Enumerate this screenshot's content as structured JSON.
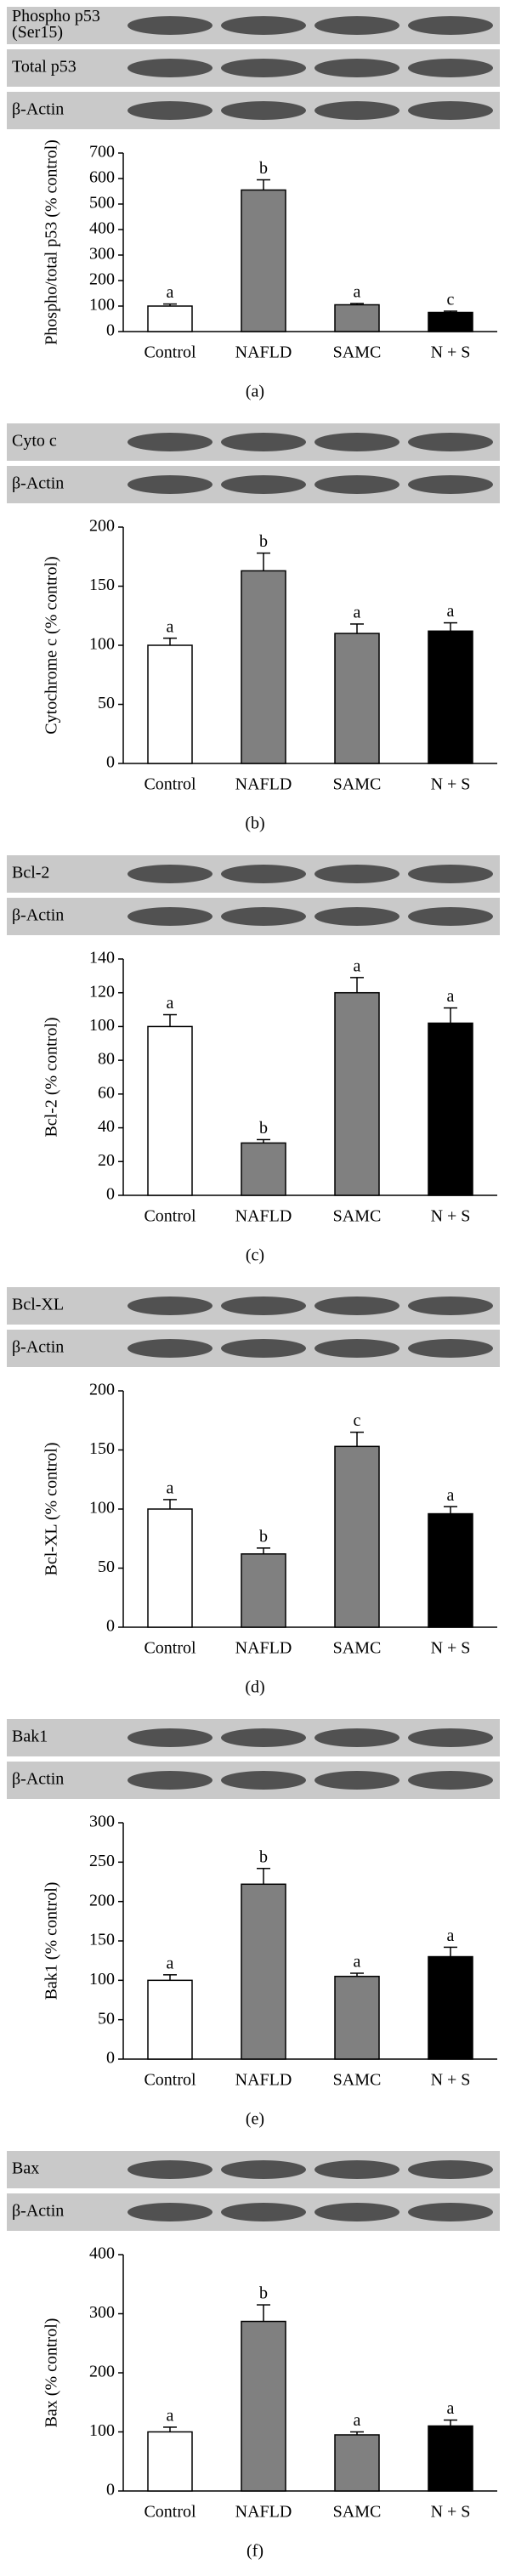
{
  "chart_data": [
    {
      "type": "bar",
      "panel_label": "(a)",
      "blots": [
        [
          "Phospho p53",
          "(Ser15)"
        ],
        [
          "Total p53"
        ],
        [
          "β-Actin"
        ]
      ],
      "ylabel": "Phospho/total p53 (% control)",
      "categories": [
        "Control",
        "NAFLD",
        "SAMC",
        "N + S"
      ],
      "values": [
        100,
        555,
        105,
        75
      ],
      "errors": [
        8,
        40,
        5,
        5
      ],
      "annotations": [
        "a",
        "b",
        "a",
        "c"
      ],
      "colors": [
        "#ffffff",
        "#808080",
        "#808080",
        "#000000"
      ],
      "ylim": [
        0,
        700
      ],
      "yticks": [
        0,
        100,
        200,
        300,
        400,
        500,
        600,
        700
      ]
    },
    {
      "type": "bar",
      "panel_label": "(b)",
      "blots": [
        [
          "Cyto c"
        ],
        [
          "β-Actin"
        ]
      ],
      "ylabel": "Cytochrome c (% control)",
      "categories": [
        "Control",
        "NAFLD",
        "SAMC",
        "N + S"
      ],
      "values": [
        100,
        163,
        110,
        112
      ],
      "errors": [
        6,
        15,
        8,
        7
      ],
      "annotations": [
        "a",
        "b",
        "a",
        "a"
      ],
      "colors": [
        "#ffffff",
        "#808080",
        "#808080",
        "#000000"
      ],
      "ylim": [
        0,
        200
      ],
      "yticks": [
        0,
        50,
        100,
        150,
        200
      ]
    },
    {
      "type": "bar",
      "panel_label": "(c)",
      "blots": [
        [
          "Bcl-2"
        ],
        [
          "β-Actin"
        ]
      ],
      "ylabel": "Bcl-2 (% control)",
      "categories": [
        "Control",
        "NAFLD",
        "SAMC",
        "N + S"
      ],
      "values": [
        100,
        31,
        120,
        102
      ],
      "errors": [
        7,
        2,
        9,
        9
      ],
      "annotations": [
        "a",
        "b",
        "a",
        "a"
      ],
      "colors": [
        "#ffffff",
        "#808080",
        "#808080",
        "#000000"
      ],
      "ylim": [
        0,
        140
      ],
      "yticks": [
        0,
        20,
        40,
        60,
        80,
        100,
        120,
        140
      ]
    },
    {
      "type": "bar",
      "panel_label": "(d)",
      "blots": [
        [
          "Bcl-XL"
        ],
        [
          "β-Actin"
        ]
      ],
      "ylabel": "Bcl-XL (% control)",
      "categories": [
        "Control",
        "NAFLD",
        "SAMC",
        "N + S"
      ],
      "values": [
        100,
        62,
        153,
        96
      ],
      "errors": [
        8,
        5,
        12,
        6
      ],
      "annotations": [
        "a",
        "b",
        "c",
        "a"
      ],
      "colors": [
        "#ffffff",
        "#808080",
        "#808080",
        "#000000"
      ],
      "ylim": [
        0,
        200
      ],
      "yticks": [
        0,
        50,
        100,
        150,
        200
      ]
    },
    {
      "type": "bar",
      "panel_label": "(e)",
      "blots": [
        [
          "Bak1"
        ],
        [
          "β-Actin"
        ]
      ],
      "ylabel": "Bak1 (% control)",
      "categories": [
        "Control",
        "NAFLD",
        "SAMC",
        "N + S"
      ],
      "values": [
        100,
        222,
        105,
        130
      ],
      "errors": [
        7,
        20,
        4,
        12
      ],
      "annotations": [
        "a",
        "b",
        "a",
        "a"
      ],
      "colors": [
        "#ffffff",
        "#808080",
        "#808080",
        "#000000"
      ],
      "ylim": [
        0,
        300
      ],
      "yticks": [
        0,
        50,
        100,
        150,
        200,
        250,
        300
      ]
    },
    {
      "type": "bar",
      "panel_label": "(f)",
      "blots": [
        [
          "Bax"
        ],
        [
          "β-Actin"
        ]
      ],
      "ylabel": "Bax (% control)",
      "categories": [
        "Control",
        "NAFLD",
        "SAMC",
        "N + S"
      ],
      "values": [
        100,
        287,
        95,
        110
      ],
      "errors": [
        8,
        28,
        5,
        10
      ],
      "annotations": [
        "a",
        "b",
        "a",
        "a"
      ],
      "colors": [
        "#ffffff",
        "#808080",
        "#808080",
        "#000000"
      ],
      "ylim": [
        0,
        400
      ],
      "yticks": [
        0,
        100,
        200,
        300,
        400
      ]
    }
  ]
}
